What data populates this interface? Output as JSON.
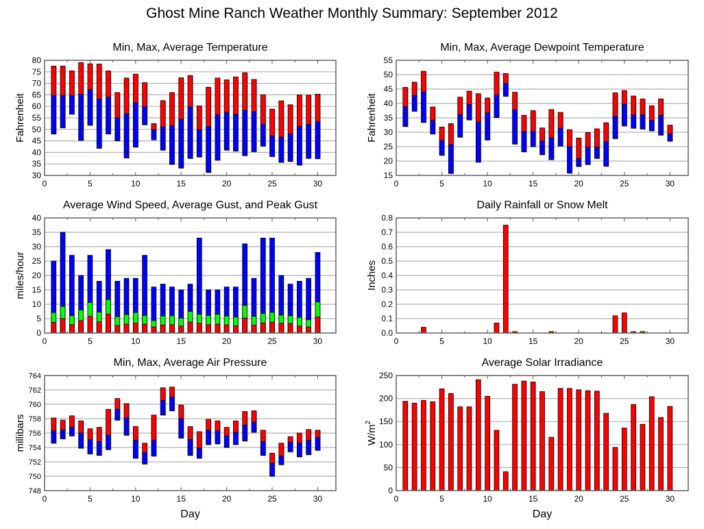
{
  "title": "Ghost Mine Ranch Weather Monthly Summary: September 2012",
  "colors": {
    "red": "#ff0000",
    "blue": "#0000ff",
    "green": "#00ff00",
    "grid": "#b0b0b0",
    "axis": "#555555"
  },
  "chart_data": [
    {
      "id": "temperature",
      "type": "bar",
      "style": "floating-range",
      "title": "Min, Max, Average Temperature",
      "xlabel": "",
      "ylabel": "Fahrenheit",
      "xlim": [
        0,
        32
      ],
      "ylim": [
        30,
        80
      ],
      "xticks": [
        0,
        5,
        10,
        15,
        20,
        25,
        30
      ],
      "yticks": [
        30,
        35,
        40,
        45,
        50,
        55,
        60,
        65,
        70,
        75,
        80
      ],
      "grid": true,
      "x": [
        1,
        2,
        3,
        4,
        5,
        6,
        7,
        8,
        9,
        10,
        11,
        12,
        13,
        14,
        15,
        16,
        17,
        18,
        19,
        20,
        21,
        22,
        23,
        24,
        25,
        26,
        27,
        28,
        29,
        30
      ],
      "series": [
        {
          "name": "Max",
          "color": "#ff0000",
          "values": [
            77.5,
            77.5,
            75.4,
            79.0,
            78.5,
            78.4,
            75.4,
            66.0,
            72.3,
            74.0,
            70.3,
            52.5,
            62.5,
            66.0,
            72.4,
            73.4,
            60.2,
            68.3,
            72.3,
            71.5,
            72.8,
            74.6,
            71.7,
            65.0,
            58.8,
            62.4,
            60.7,
            65.0,
            64.9,
            65.3
          ]
        },
        {
          "name": "Average",
          "color": "#0000ff",
          "values": [
            64.7,
            64.6,
            64.7,
            65.2,
            67.2,
            63.2,
            64.0,
            55.0,
            56.8,
            61.5,
            59.8,
            49.8,
            51.0,
            51.5,
            54.4,
            59.8,
            49.8,
            51.2,
            56.3,
            57.3,
            56.5,
            58.3,
            57.6,
            52.2,
            47.1,
            46.6,
            48.0,
            51.2,
            52.2,
            53.3
          ]
        },
        {
          "name": "Min",
          "values": [
            48.0,
            50.7,
            56.6,
            45.2,
            51.8,
            41.8,
            48.0,
            45.0,
            37.6,
            42.3,
            52.0,
            45.5,
            41.0,
            34.8,
            33.2,
            37.4,
            38.0,
            31.3,
            36.6,
            41.0,
            40.6,
            38.6,
            40.3,
            42.7,
            38.2,
            35.7,
            36.1,
            34.5,
            37.4,
            37.3
          ]
        }
      ]
    },
    {
      "id": "dewpoint",
      "type": "bar",
      "style": "floating-range",
      "title": "Min, Max, Average Dewpoint Temperature",
      "xlabel": "",
      "ylabel": "Fahrenheit",
      "xlim": [
        0,
        32
      ],
      "ylim": [
        15,
        55
      ],
      "xticks": [
        0,
        5,
        10,
        15,
        20,
        25,
        30
      ],
      "yticks": [
        15,
        20,
        25,
        30,
        35,
        40,
        45,
        50,
        55
      ],
      "grid": true,
      "x": [
        1,
        2,
        3,
        4,
        5,
        6,
        7,
        8,
        9,
        10,
        11,
        12,
        13,
        14,
        15,
        16,
        17,
        18,
        19,
        20,
        21,
        22,
        23,
        24,
        25,
        26,
        27,
        28,
        29,
        30
      ],
      "series": [
        {
          "name": "Max",
          "color": "#ff0000",
          "values": [
            45.6,
            47.4,
            51.2,
            38.8,
            31.8,
            33.0,
            42.2,
            44.3,
            43.4,
            41.9,
            50.9,
            50.4,
            43.9,
            35.9,
            37.5,
            31.5,
            37.9,
            36.9,
            30.9,
            28.0,
            29.9,
            31.2,
            33.3,
            43.7,
            44.5,
            42.6,
            41.6,
            39.2,
            41.6,
            32.5
          ]
        },
        {
          "name": "Average",
          "color": "#0000ff",
          "values": [
            38.9,
            42.8,
            44.0,
            34.1,
            27.2,
            25.7,
            36.1,
            39.6,
            33.6,
            36.7,
            42.9,
            46.9,
            37.8,
            30.2,
            30.3,
            26.9,
            28.1,
            31.4,
            25.0,
            20.8,
            24.8,
            24.8,
            26.7,
            35.5,
            39.7,
            36.0,
            36.0,
            34.0,
            35.8,
            29.4
          ]
        },
        {
          "name": "Min",
          "values": [
            32.0,
            37.3,
            33.4,
            29.4,
            22.0,
            15.7,
            28.3,
            34.3,
            19.6,
            27.3,
            35.1,
            42.5,
            25.9,
            23.2,
            25.0,
            22.2,
            20.5,
            25.2,
            15.8,
            18.1,
            18.8,
            20.9,
            18.2,
            27.8,
            32.2,
            31.4,
            31.1,
            30.5,
            29.0,
            26.9
          ]
        }
      ]
    },
    {
      "id": "wind",
      "type": "bar",
      "style": "overlaid",
      "title": "Average Wind Speed, Average Gust, and Peak Gust",
      "xlabel": "",
      "ylabel": "miles/hour",
      "xlim": [
        0,
        32
      ],
      "ylim": [
        0,
        40
      ],
      "xticks": [
        0,
        5,
        10,
        15,
        20,
        25,
        30
      ],
      "yticks": [
        0,
        5,
        10,
        15,
        20,
        25,
        30,
        35,
        40
      ],
      "grid": true,
      "x": [
        1,
        2,
        3,
        4,
        5,
        6,
        7,
        8,
        9,
        10,
        11,
        12,
        13,
        14,
        15,
        16,
        17,
        18,
        19,
        20,
        21,
        22,
        23,
        24,
        25,
        26,
        27,
        28,
        29,
        30
      ],
      "series": [
        {
          "name": "Peak Gust",
          "color": "#0000ff",
          "values": [
            25,
            35,
            27,
            20,
            27,
            18,
            29,
            18,
            19,
            19,
            27,
            16,
            17,
            16,
            15,
            17,
            33,
            15,
            15,
            16,
            16,
            31,
            19,
            33,
            33,
            20,
            17,
            18,
            19,
            28
          ]
        },
        {
          "name": "Average Gust",
          "color": "#00ff00",
          "values": [
            7.1,
            9.2,
            6.0,
            8.0,
            10.6,
            7.3,
            11.6,
            5.7,
            6.4,
            7.1,
            6.1,
            4.3,
            5.9,
            6.0,
            5.2,
            7.5,
            6.5,
            6.1,
            6.5,
            5.9,
            5.5,
            9.6,
            5.8,
            6.8,
            7.2,
            6.2,
            6.0,
            5.4,
            4.6,
            10.8
          ]
        },
        {
          "name": "Average Wind Speed",
          "color": "#ff0000",
          "values": [
            3.7,
            5.0,
            2.9,
            4.3,
            5.8,
            3.9,
            6.6,
            2.6,
            3.1,
            3.4,
            3.1,
            2.1,
            2.8,
            2.9,
            2.4,
            3.8,
            3.4,
            2.9,
            3.1,
            2.8,
            2.5,
            5.2,
            2.7,
            3.5,
            3.8,
            3.4,
            3.3,
            2.4,
            2.1,
            5.6
          ]
        }
      ]
    },
    {
      "id": "rainfall",
      "type": "bar",
      "title": "Daily Rainfall or Snow Melt",
      "xlabel": "",
      "ylabel": "Inches",
      "xlim": [
        0,
        32
      ],
      "ylim": [
        0,
        0.8
      ],
      "xticks": [
        0,
        5,
        10,
        15,
        20,
        25,
        30
      ],
      "yticks": [
        "0.0",
        "0.1",
        "0.2",
        "0.3",
        "0.4",
        "0.5",
        "0.6",
        "0.7",
        "0.8"
      ],
      "grid": true,
      "x": [
        1,
        2,
        3,
        4,
        5,
        6,
        7,
        8,
        9,
        10,
        11,
        12,
        13,
        14,
        15,
        16,
        17,
        18,
        19,
        20,
        21,
        22,
        23,
        24,
        25,
        26,
        27,
        28,
        29,
        30
      ],
      "series": [
        {
          "name": "Rainfall",
          "color": "#ff0000",
          "values": [
            0,
            0,
            0.04,
            0,
            0,
            0,
            0,
            0,
            0,
            0,
            0.07,
            0.75,
            0.01,
            0,
            0,
            0,
            0.01,
            0,
            0,
            0,
            0,
            0,
            0,
            0.12,
            0.14,
            0.01,
            0.01,
            0,
            0,
            0
          ]
        }
      ]
    },
    {
      "id": "pressure",
      "type": "bar",
      "style": "floating-range",
      "title": "Min, Max, Average Air Pressure",
      "xlabel": "Day",
      "ylabel": "millibars",
      "xlim": [
        0,
        32
      ],
      "ylim": [
        748,
        764
      ],
      "xticks": [
        0,
        5,
        10,
        15,
        20,
        25,
        30
      ],
      "yticks": [
        748,
        750,
        752,
        754,
        756,
        758,
        760,
        762,
        764
      ],
      "grid": true,
      "x": [
        1,
        2,
        3,
        4,
        5,
        6,
        7,
        8,
        9,
        10,
        11,
        12,
        13,
        14,
        15,
        16,
        17,
        18,
        19,
        20,
        21,
        22,
        23,
        24,
        25,
        26,
        27,
        28,
        29,
        30
      ],
      "series": [
        {
          "name": "Max",
          "color": "#ff0000",
          "values": [
            758.1,
            757.8,
            758.4,
            757.7,
            756.6,
            756.8,
            759.3,
            760.8,
            760.1,
            756.9,
            754.6,
            758.5,
            762.3,
            762.4,
            759.9,
            756.9,
            756.2,
            757.9,
            757.7,
            756.8,
            757.7,
            759.0,
            759.1,
            756.4,
            753.2,
            754.6,
            755.5,
            756.0,
            756.5,
            756.4
          ]
        },
        {
          "name": "Average",
          "color": "#0000ff",
          "values": [
            756.3,
            756.4,
            756.8,
            756.0,
            755.1,
            754.8,
            755.7,
            759.3,
            758.1,
            755.0,
            753.3,
            755.0,
            760.5,
            761.0,
            758.0,
            755.1,
            753.9,
            756.4,
            756.3,
            755.6,
            756.1,
            757.1,
            757.5,
            754.8,
            751.8,
            752.8,
            754.7,
            754.6,
            755.0,
            755.4
          ]
        },
        {
          "name": "Min",
          "values": [
            754.6,
            755.2,
            755.6,
            753.9,
            753.1,
            752.9,
            753.7,
            757.8,
            755.7,
            752.5,
            751.7,
            752.8,
            758.5,
            759.1,
            755.3,
            752.9,
            752.5,
            754.4,
            754.5,
            754.0,
            754.4,
            754.9,
            756.1,
            752.9,
            750.0,
            751.6,
            753.4,
            752.7,
            753.0,
            753.6
          ]
        }
      ]
    },
    {
      "id": "solar",
      "type": "bar",
      "title": "Average Solar Irradiance",
      "xlabel": "Day",
      "ylabel": "W/m",
      "ylabel_superscript": "2",
      "xlim": [
        0,
        32
      ],
      "ylim": [
        0,
        250
      ],
      "xticks": [
        0,
        5,
        10,
        15,
        20,
        25,
        30
      ],
      "yticks": [
        0,
        50,
        100,
        150,
        200,
        250
      ],
      "grid": true,
      "x": [
        1,
        2,
        3,
        4,
        5,
        6,
        7,
        8,
        9,
        10,
        11,
        12,
        13,
        14,
        15,
        16,
        17,
        18,
        19,
        20,
        21,
        22,
        23,
        24,
        25,
        26,
        27,
        28,
        29,
        30
      ],
      "series": [
        {
          "name": "Solar Irradiance",
          "color": "#ff0000",
          "values": [
            194,
            190,
            196,
            193,
            221,
            211,
            182,
            182,
            241,
            205,
            131,
            41,
            231,
            238,
            236,
            215,
            116,
            222,
            222,
            219,
            217,
            216,
            168,
            94,
            136,
            187,
            144,
            204,
            159,
            183
          ]
        }
      ]
    }
  ]
}
